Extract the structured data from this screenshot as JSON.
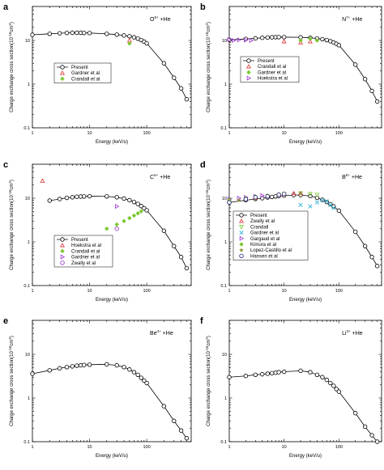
{
  "figure": {
    "colors": {
      "axis": "#000000",
      "curve": "#000000",
      "present_marker": "#000000",
      "red": "#e03030",
      "green": "#7cc832",
      "purple": "#9b30d0",
      "cyan": "#30b0d8",
      "olive": "#8a8a2a",
      "navy": "#202080"
    }
  },
  "chart_data": [
    {
      "type": "scatter",
      "panel_label": "a",
      "title": "O",
      "title_sup": "8+",
      "title_suffix": " +He",
      "xlabel": "Energy (keV/u)",
      "ylabel": "Charge exchange cross section(10",
      "ylabel_sup": "-16",
      "ylabel_tail": "cm",
      "ylabel_sup2": "2",
      "ylabel_end": ")",
      "xscale": "log",
      "yscale": "log",
      "xlim": [
        1,
        600
      ],
      "ylim": [
        0.1,
        60
      ],
      "legend_position": "middle",
      "x_ticks": [
        {
          "v": 1,
          "label": "1"
        },
        {
          "v": 10,
          "label": "10"
        },
        {
          "v": 100,
          "label": "100"
        }
      ],
      "y_ticks": [
        {
          "v": 0.1,
          "label": "0.1"
        },
        {
          "v": 1,
          "label": "1"
        },
        {
          "v": 10,
          "label": "10"
        }
      ],
      "series": [
        {
          "name": "Present",
          "marker": "circle",
          "color": "#000000",
          "line": true,
          "x": [
            1,
            2,
            3,
            4,
            5,
            6,
            7,
            8,
            10,
            20,
            30,
            40,
            50,
            60,
            70,
            80,
            90,
            100,
            200,
            300,
            400,
            500
          ],
          "y": [
            13.5,
            14.2,
            14.6,
            14.9,
            15,
            15,
            15,
            14.9,
            14.8,
            14.2,
            13.6,
            13,
            12.5,
            11.8,
            11,
            10.2,
            9.4,
            8.6,
            3,
            1.4,
            0.8,
            0.45
          ]
        },
        {
          "name": "Gardner et al",
          "marker": "triangle",
          "color": "#e03030",
          "x": [
            50
          ],
          "y": [
            10
          ]
        },
        {
          "name": "Crandall et al",
          "marker": "diamond",
          "color": "#7cc832",
          "x": [
            50
          ],
          "y": [
            8.5
          ]
        }
      ]
    },
    {
      "type": "scatter",
      "panel_label": "b",
      "title": "N",
      "title_sup": "7+",
      "title_suffix": " +He",
      "xlabel": "Energy (keV/u)",
      "ylabel": "Charge exchange cross section(10",
      "ylabel_sup": "-16",
      "ylabel_tail": "cm",
      "ylabel_sup2": "2",
      "ylabel_end": ")",
      "xscale": "log",
      "yscale": "log",
      "xlim": [
        1,
        600
      ],
      "ylim": [
        0.1,
        60
      ],
      "legend_position": "middle",
      "x_ticks": [
        {
          "v": 1,
          "label": "1"
        },
        {
          "v": 10,
          "label": "10"
        },
        {
          "v": 100,
          "label": "100"
        }
      ],
      "y_ticks": [
        {
          "v": 0.1,
          "label": "0.1"
        },
        {
          "v": 1,
          "label": "1"
        },
        {
          "v": 10,
          "label": "10"
        }
      ],
      "series": [
        {
          "name": "Present",
          "marker": "circle",
          "color": "#000000",
          "line": true,
          "x": [
            1,
            2,
            3,
            4,
            5,
            6,
            7,
            8,
            10,
            20,
            30,
            40,
            50,
            60,
            70,
            80,
            90,
            100,
            200,
            300,
            400,
            500
          ],
          "y": [
            10.3,
            10.8,
            11.2,
            11.5,
            11.7,
            11.8,
            11.9,
            11.9,
            11.9,
            11.8,
            11.5,
            11.1,
            10.7,
            10.2,
            9.6,
            9,
            8.4,
            7.8,
            2.8,
            1.3,
            0.7,
            0.4
          ]
        },
        {
          "name": "Crandall et al",
          "marker": "triangle",
          "color": "#e03030",
          "x": [
            10,
            20,
            30
          ],
          "y": [
            9.5,
            9,
            9.5
          ]
        },
        {
          "name": "Gardner et al",
          "marker": "diamond",
          "color": "#7cc832",
          "x": [
            20,
            30,
            40
          ],
          "y": [
            10,
            11,
            10
          ]
        },
        {
          "name": "Hoekstra et al",
          "marker": "tri-right",
          "color": "#9b30d0",
          "x": [
            1,
            1.2,
            1.5,
            2,
            2.5
          ],
          "y": [
            10.5,
            10,
            10.3,
            10.2,
            10
          ]
        }
      ]
    },
    {
      "type": "scatter",
      "panel_label": "c",
      "title": "C",
      "title_sup": "6+",
      "title_suffix": " +He",
      "xlabel": "Energy (keV/u)",
      "ylabel": "Charge exchange cross section(10",
      "ylabel_sup": "-16",
      "ylabel_tail": "cm",
      "ylabel_sup2": "2",
      "ylabel_end": ")",
      "xscale": "log",
      "yscale": "log",
      "xlim": [
        1,
        600
      ],
      "ylim": [
        0.1,
        60
      ],
      "legend_position": "bottom-left",
      "x_ticks": [
        {
          "v": 1,
          "label": "1"
        },
        {
          "v": 10,
          "label": "10"
        },
        {
          "v": 100,
          "label": "100"
        }
      ],
      "y_ticks": [
        {
          "v": 0.1,
          "label": "0.1"
        },
        {
          "v": 1,
          "label": "1"
        },
        {
          "v": 10,
          "label": "10"
        }
      ],
      "series": [
        {
          "name": "Present",
          "marker": "circle",
          "color": "#000000",
          "line": true,
          "x": [
            2,
            3,
            4,
            5,
            6,
            7,
            8,
            10,
            20,
            30,
            40,
            50,
            60,
            70,
            80,
            90,
            100,
            200,
            300,
            400,
            500
          ],
          "y": [
            8.8,
            9.6,
            10.2,
            10.5,
            10.8,
            10.9,
            11,
            11.1,
            11,
            10.5,
            9.8,
            9,
            8.2,
            7.4,
            6.6,
            5.9,
            5.3,
            1.8,
            0.8,
            0.45,
            0.25
          ]
        },
        {
          "name": "Hoekstra et al",
          "marker": "triangle",
          "color": "#e03030",
          "x": [
            1.5
          ],
          "y": [
            25
          ]
        },
        {
          "name": "Crandall et al",
          "marker": "diamond",
          "color": "#7cc832",
          "x": [
            20,
            30,
            40,
            50,
            60,
            70,
            80
          ],
          "y": [
            2,
            2.5,
            3,
            3.5,
            4,
            4.5,
            5
          ]
        },
        {
          "name": "Gardner et al",
          "marker": "tri-right",
          "color": "#9b30d0",
          "x": [
            30
          ],
          "y": [
            6.5
          ]
        },
        {
          "name": "Zwally et al",
          "marker": "circle",
          "color": "#9b30d0",
          "x": [
            30
          ],
          "y": [
            2
          ]
        }
      ]
    },
    {
      "type": "scatter",
      "panel_label": "d",
      "title": "B",
      "title_sup": "5+",
      "title_suffix": " +He",
      "xlabel": "Energy (keV/u)",
      "ylabel": "Charge exchange cross section(10",
      "ylabel_sup": "-16",
      "ylabel_tail": "cm",
      "ylabel_sup2": "2",
      "ylabel_end": ")",
      "xscale": "log",
      "yscale": "log",
      "xlim": [
        1,
        600
      ],
      "ylim": [
        0.1,
        60
      ],
      "legend_position": "bottom-left",
      "x_ticks": [
        {
          "v": 1,
          "label": "1"
        },
        {
          "v": 10,
          "label": "10"
        },
        {
          "v": 100,
          "label": "100"
        }
      ],
      "y_ticks": [
        {
          "v": 0.1,
          "label": "0.1"
        },
        {
          "v": 1,
          "label": "1"
        },
        {
          "v": 10,
          "label": "10"
        }
      ],
      "series": [
        {
          "name": "Present",
          "marker": "circle",
          "color": "#000000",
          "line": true,
          "x": [
            1,
            2,
            3,
            4,
            5,
            6,
            7,
            8,
            10,
            15,
            20,
            30,
            40,
            50,
            60,
            70,
            80,
            100,
            200,
            300,
            400,
            500
          ],
          "y": [
            8,
            9,
            9.6,
            10,
            10.4,
            10.7,
            11,
            11.2,
            11.5,
            11.8,
            11.8,
            11.2,
            10.2,
            9.2,
            8.2,
            7.3,
            6.5,
            5.2,
            1.7,
            0.8,
            0.45,
            0.28
          ]
        },
        {
          "name": "Zwally  et al",
          "marker": "triangle",
          "color": "#e03030",
          "x": [
            3,
            5,
            8,
            10,
            15,
            20
          ],
          "y": [
            10,
            11,
            12,
            12.5,
            13,
            13
          ]
        },
        {
          "name": "Crandall",
          "marker": "tri-down",
          "color": "#7cc832",
          "x": [
            2,
            3,
            5,
            8,
            10,
            20,
            30,
            40
          ],
          "y": [
            9.5,
            10,
            11,
            12,
            12.5,
            13,
            12.5,
            12
          ]
        },
        {
          "name": "Gardner et al",
          "marker": "cross",
          "color": "#30b0d8",
          "x": [
            20,
            30,
            40,
            50,
            60,
            70,
            80
          ],
          "y": [
            7,
            6.5,
            8,
            9,
            8.5,
            7,
            6
          ]
        },
        {
          "name": "Gargaud et al",
          "marker": "tri-right",
          "color": "#9b30d0",
          "x": [
            1,
            1.5,
            2,
            3,
            4,
            5
          ],
          "y": [
            9.5,
            10,
            10.5,
            11,
            11.5,
            11
          ]
        },
        {
          "name": "Kimura et al",
          "marker": "diamond",
          "color": "#7cc832",
          "x": [
            1,
            2,
            3,
            5,
            8
          ],
          "y": [
            9,
            10,
            11,
            11.5,
            12
          ]
        },
        {
          "name": "Lopez-Castillo et al",
          "marker": "star",
          "color": "#8a8a2a",
          "x": [
            1,
            1.5,
            2,
            3
          ],
          "y": [
            8.5,
            9,
            9.5,
            10
          ]
        },
        {
          "name": "Hansen et al",
          "marker": "circle",
          "color": "#202080",
          "x": [
            1,
            2,
            3,
            5,
            8,
            10
          ],
          "y": [
            8,
            9.5,
            10.5,
            11,
            12,
            12.5
          ]
        }
      ]
    },
    {
      "type": "scatter",
      "panel_label": "e",
      "title": "Be",
      "title_sup": "4+",
      "title_suffix": " +He",
      "xlabel": "Energy (keV/u)",
      "ylabel": "Charge exchange cross section(10",
      "ylabel_sup": "-16",
      "ylabel_tail": "cm",
      "ylabel_sup2": "2",
      "ylabel_end": ")",
      "xscale": "log",
      "yscale": "log",
      "xlim": [
        1,
        600
      ],
      "ylim": [
        0.1,
        60
      ],
      "legend_position": "none",
      "x_ticks": [
        {
          "v": 1,
          "label": "1"
        },
        {
          "v": 10,
          "label": "10"
        },
        {
          "v": 100,
          "label": "100"
        }
      ],
      "y_ticks": [
        {
          "v": 0.1,
          "label": "0.1"
        },
        {
          "v": 1,
          "label": "1"
        },
        {
          "v": 10,
          "label": "10"
        }
      ],
      "series": [
        {
          "name": "",
          "marker": "circle",
          "color": "#000000",
          "line": true,
          "x": [
            1,
            2,
            3,
            4,
            5,
            6,
            7,
            8,
            10,
            20,
            30,
            40,
            50,
            60,
            70,
            80,
            90,
            100,
            200,
            300,
            400,
            500
          ],
          "y": [
            3.6,
            4.3,
            4.8,
            5.1,
            5.3,
            5.5,
            5.6,
            5.7,
            5.8,
            5.9,
            5.6,
            5.1,
            4.5,
            3.9,
            3.4,
            2.9,
            2.5,
            2.2,
            0.65,
            0.3,
            0.18,
            0.12
          ]
        }
      ]
    },
    {
      "type": "scatter",
      "panel_label": "f",
      "title": "Li",
      "title_sup": "3+",
      "title_suffix": " +He",
      "xlabel": "Energy (keV/u)",
      "ylabel": "Charge exchange cross section(10",
      "ylabel_sup": "-16",
      "ylabel_tail": "cm",
      "ylabel_sup2": "2",
      "ylabel_end": ")",
      "xscale": "log",
      "yscale": "log",
      "xlim": [
        1,
        600
      ],
      "ylim": [
        0.1,
        60
      ],
      "legend_position": "none",
      "x_ticks": [
        {
          "v": 1,
          "label": "1"
        },
        {
          "v": 10,
          "label": "10"
        },
        {
          "v": 100,
          "label": "100"
        }
      ],
      "y_ticks": [
        {
          "v": 0.1,
          "label": "0.1"
        },
        {
          "v": 1,
          "label": "1"
        },
        {
          "v": 10,
          "label": "10"
        }
      ],
      "series": [
        {
          "name": "",
          "marker": "circle",
          "color": "#000000",
          "line": true,
          "x": [
            1,
            2,
            3,
            4,
            5,
            6,
            7,
            8,
            10,
            20,
            30,
            40,
            50,
            60,
            70,
            80,
            90,
            100,
            200,
            300,
            400,
            500
          ],
          "y": [
            3,
            3.2,
            3.4,
            3.5,
            3.6,
            3.7,
            3.8,
            3.9,
            4,
            4.2,
            3.9,
            3.4,
            3,
            2.6,
            2.2,
            1.9,
            1.6,
            1.4,
            0.45,
            0.22,
            0.14,
            0.1
          ]
        }
      ]
    }
  ]
}
